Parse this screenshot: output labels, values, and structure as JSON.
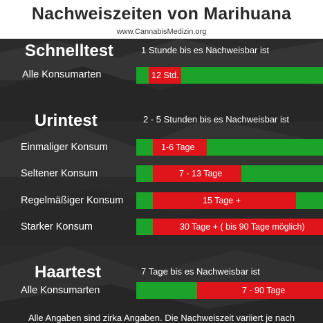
{
  "header": {
    "title": "Nachweiszeiten von Marihuana",
    "subtitle": "www.CannabisMedizin.org"
  },
  "sections": [
    {
      "title": "Schnelltest",
      "note": "1 Stunde bis es Nachweisbar ist",
      "rows": [
        {
          "label": "Alle Konsumarten",
          "bar_text": "12 Std."
        }
      ]
    },
    {
      "title": "Urintest",
      "note": "2 - 5 Stunden bis es Nachweisbar ist",
      "rows": [
        {
          "label": "Einmaliger Konsum",
          "bar_text": "1-6 Tage"
        },
        {
          "label": "Seltener Konsum",
          "bar_text": "7 - 13 Tage"
        },
        {
          "label": "Regelmäßiger Konsum",
          "bar_text": "15 Tage +"
        },
        {
          "label": "Starker Konsum",
          "bar_text": "30 Tage + ( bis 90 Tage möglich)"
        }
      ]
    },
    {
      "title": "Haartest",
      "note": "7 Tage bis es Nachweisbar ist",
      "rows": [
        {
          "label": "Alle Konsumarten",
          "bar_text": "7 - 90 Tage"
        }
      ]
    }
  ],
  "footer": "Alle Angaben sind zirka Angaben. Die Nachweiszeit variiert je nach",
  "colors": {
    "positive": "#e0151b",
    "negative": "#1aa52a",
    "background": "#2b2b2b"
  }
}
